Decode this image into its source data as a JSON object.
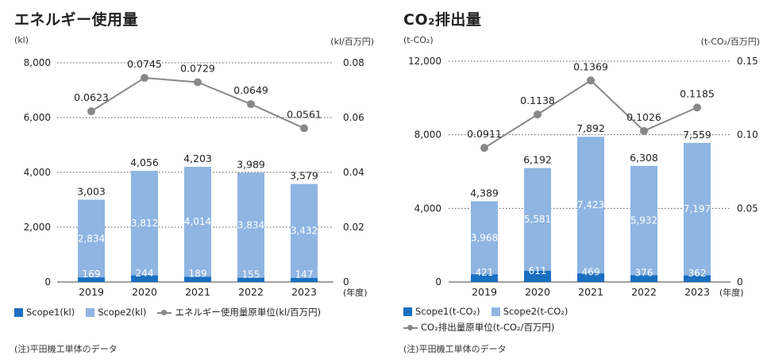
{
  "colors": {
    "scope1": "#1a6fc0",
    "scope2": "#8fb5e2",
    "line": "#888888",
    "grid": "#555555"
  },
  "chart_data": [
    {
      "type": "bar",
      "title": "エネルギー使用量",
      "left_unit": "(kl)",
      "right_unit": "(kl/百万円)",
      "categories": [
        "2019",
        "2020",
        "2021",
        "2022",
        "2023"
      ],
      "x_suffix": "(年度)",
      "series": [
        {
          "name": "Scope1(kl)",
          "values": [
            169,
            244,
            189,
            155,
            147
          ]
        },
        {
          "name": "Scope2(kl)",
          "values": [
            2834,
            3812,
            4014,
            3834,
            3432
          ]
        }
      ],
      "totals": [
        3003,
        4056,
        4203,
        3989,
        3579
      ],
      "totals_labels": [
        "3,003",
        "4,056",
        "4,203",
        "3,989",
        "3,579"
      ],
      "scope1_labels": [
        "169",
        "244",
        "189",
        "155",
        "147"
      ],
      "scope2_labels": [
        "2,834",
        "3,812",
        "4,014",
        "3,834",
        "3,432"
      ],
      "line": {
        "name": "エネルギー使用量原単位(kl/百万円)",
        "values": [
          0.0623,
          0.0745,
          0.0729,
          0.0649,
          0.0561
        ],
        "labels": [
          "0.0623",
          "0.0745",
          "0.0729",
          "0.0649",
          "0.0561"
        ]
      },
      "ylim": [
        0,
        8000
      ],
      "yticks": [
        "0",
        "2,000",
        "4,000",
        "6,000",
        "8,000"
      ],
      "y2lim": [
        0,
        0.08
      ],
      "y2ticks": [
        "0",
        "0.02",
        "0.04",
        "0.06",
        "0.08"
      ],
      "legend": {
        "scope1": "Scope1(kl)",
        "scope2": "Scope2(kl)",
        "line": "エネルギー使用量原単位(kl/百万円)"
      },
      "note": "(注)平田機工単体のデータ"
    },
    {
      "type": "bar",
      "title": "CO₂排出量",
      "left_unit": "(t-CO₂)",
      "right_unit": "(t-CO₂/百万円)",
      "categories": [
        "2019",
        "2020",
        "2021",
        "2022",
        "2023"
      ],
      "x_suffix": "(年度)",
      "series": [
        {
          "name": "Scope1(t-CO₂)",
          "values": [
            421,
            611,
            469,
            376,
            362
          ]
        },
        {
          "name": "Scope2(t-CO₂)",
          "values": [
            3968,
            5581,
            7423,
            5932,
            7197
          ]
        }
      ],
      "totals": [
        4389,
        6192,
        7892,
        6308,
        7559
      ],
      "totals_labels": [
        "4,389",
        "6,192",
        "7,892",
        "6,308",
        "7,559"
      ],
      "scope1_labels": [
        "421",
        "611",
        "469",
        "376",
        "362"
      ],
      "scope2_labels": [
        "3,968",
        "5,581",
        "7,423",
        "5,932",
        "7,197"
      ],
      "line": {
        "name": "CO₂排出量原単位(t-CO₂/百万円)",
        "values": [
          0.0911,
          0.1138,
          0.1369,
          0.1026,
          0.1185
        ],
        "labels": [
          "0.0911",
          "0.1138",
          "0.1369",
          "0.1026",
          "0.1185"
        ]
      },
      "ylim": [
        0,
        12000
      ],
      "yticks": [
        "0",
        "4,000",
        "8,000",
        "12,000"
      ],
      "y2lim": [
        0,
        0.15
      ],
      "y2ticks": [
        "0",
        "0.05",
        "0.10",
        "0.15"
      ],
      "legend": {
        "scope1": "Scope1(t-CO₂)",
        "scope2": "Scope2(t-CO₂)",
        "line": "CO₂排出量原単位(t-CO₂/百万円)"
      },
      "note": "(注)平田機工単体のデータ"
    }
  ]
}
